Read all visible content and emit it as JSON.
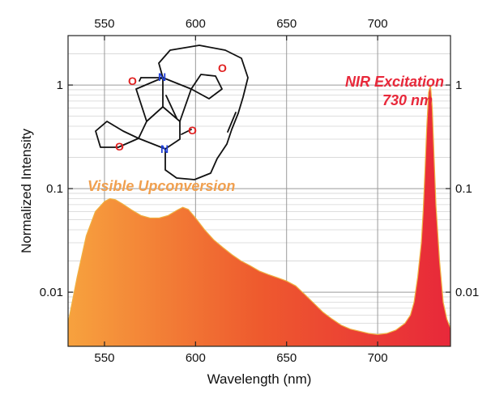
{
  "chart_data": {
    "type": "area",
    "xlabel": "Wavelength (nm)",
    "ylabel": "Normalized Intensity",
    "xlim": [
      530,
      740
    ],
    "ylim": [
      0.003,
      3
    ],
    "y_scale": "log",
    "grid": true,
    "x_ticks": [
      550,
      600,
      650,
      700
    ],
    "x_top_ticks": [
      550,
      600,
      650,
      700
    ],
    "y_ticks": [
      0.01,
      0.1,
      1
    ],
    "y_tick_labels": [
      "0.01",
      "0.1",
      "1"
    ],
    "x_tick_labels": [
      "550",
      "600",
      "650",
      "700"
    ],
    "series": [
      {
        "x": [
          530,
          535,
          540,
          545,
          550,
          553,
          556,
          560,
          565,
          570,
          575,
          580,
          585,
          590,
          593,
          596,
          600,
          605,
          610,
          615,
          620,
          625,
          630,
          635,
          640,
          645,
          650,
          655,
          660,
          665,
          670,
          675,
          680,
          685,
          690,
          695,
          700,
          705,
          710,
          715,
          718,
          720,
          722,
          724,
          725,
          726,
          727,
          728,
          729,
          730,
          731,
          732,
          734,
          736,
          738,
          740
        ],
        "values": [
          0.005,
          0.014,
          0.035,
          0.06,
          0.075,
          0.08,
          0.078,
          0.071,
          0.062,
          0.055,
          0.052,
          0.052,
          0.055,
          0.062,
          0.066,
          0.063,
          0.052,
          0.04,
          0.032,
          0.027,
          0.023,
          0.02,
          0.018,
          0.016,
          0.0148,
          0.0138,
          0.0128,
          0.0115,
          0.0095,
          0.0078,
          0.0064,
          0.0055,
          0.0048,
          0.0044,
          0.0042,
          0.004,
          0.0039,
          0.004,
          0.0043,
          0.005,
          0.006,
          0.008,
          0.014,
          0.03,
          0.06,
          0.15,
          0.4,
          0.85,
          1.0,
          0.6,
          0.2,
          0.07,
          0.02,
          0.008,
          0.0055,
          0.0045
        ]
      }
    ],
    "annotations": [
      {
        "text": "Visible Upconversion",
        "color": "#F0A050"
      },
      {
        "text": "NIR Excitation",
        "color": "#E8283A"
      },
      {
        "text": "730 nm",
        "color": "#E8283A"
      }
    ],
    "fill_gradient": [
      "#F7A23E",
      "#EE5A2E",
      "#E8283A"
    ],
    "inset": {
      "type": "molecule",
      "atoms": [
        "O",
        "O",
        "O",
        "O",
        "N",
        "N"
      ],
      "oxygen_color": "#E02020",
      "nitrogen_color": "#2040D8"
    }
  }
}
